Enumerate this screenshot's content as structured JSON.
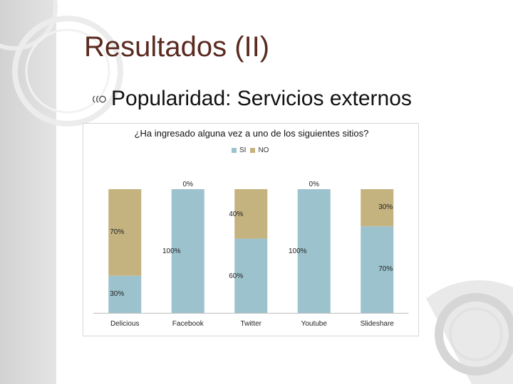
{
  "slide": {
    "title": "Resultados (II)",
    "bullet": "Popularidad: Servicios externos"
  },
  "chart_data": {
    "type": "bar",
    "stacked": true,
    "title": "¿Ha ingresado alguna vez a uno de los siguientes sitios?",
    "categories": [
      "Delicious",
      "Facebook",
      "Twitter",
      "Youtube",
      "Slideshare"
    ],
    "series": [
      {
        "name": "SI",
        "color": "#9cc3cd",
        "values": [
          30,
          100,
          60,
          100,
          70
        ]
      },
      {
        "name": "NO",
        "color": "#c4b27f",
        "values": [
          70,
          0,
          40,
          0,
          30
        ]
      }
    ],
    "data_labels": [
      {
        "si": "30%",
        "no": "70%"
      },
      {
        "si": "100%",
        "no": "0%"
      },
      {
        "si": "60%",
        "no": "40%"
      },
      {
        "si": "100%",
        "no": "0%"
      },
      {
        "si": "70%",
        "no": "30%"
      }
    ],
    "ylim": [
      0,
      100
    ],
    "legend": "top-center",
    "grid": false
  }
}
